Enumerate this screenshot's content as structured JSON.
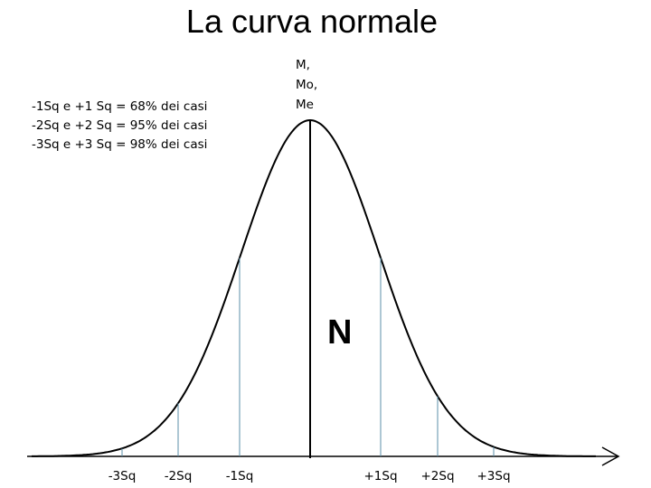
{
  "title": "La curva normale",
  "notes": [
    "-1Sq e +1 Sq = 68% dei casi",
    "-2Sq e +2 Sq = 95% dei casi",
    "-3Sq e +3 Sq = 98% dei casi"
  ],
  "center_labels": [
    "M,",
    "Mo,",
    "Me"
  ],
  "region_label": "N",
  "axis_labels": [
    "-3Sq",
    "-2Sq",
    "-1Sq",
    "+1Sq",
    "+2Sq",
    "+3Sq"
  ]
}
